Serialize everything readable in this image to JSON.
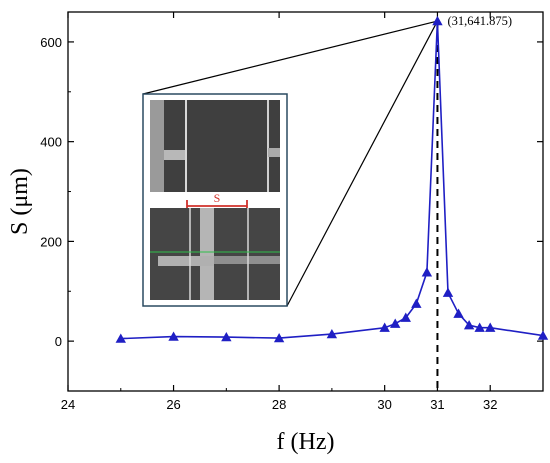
{
  "chart_data": {
    "type": "line",
    "xlabel": "f (Hz)",
    "ylabel": "S (μm)",
    "xlim": [
      24,
      33
    ],
    "ylim": [
      -100,
      660
    ],
    "x_ticks": [
      "24",
      "26",
      "28",
      "30",
      "31",
      "32"
    ],
    "y_ticks": [
      "0",
      "200",
      "400",
      "600"
    ],
    "grid": false,
    "series": [
      {
        "color": "#1f1fc4",
        "marker": "triangle",
        "points": [
          {
            "x": 25,
            "y": 5
          },
          {
            "x": 26,
            "y": 9
          },
          {
            "x": 27,
            "y": 8
          },
          {
            "x": 28,
            "y": 6
          },
          {
            "x": 29,
            "y": 14
          },
          {
            "x": 30,
            "y": 27
          },
          {
            "x": 30.2,
            "y": 35
          },
          {
            "x": 30.4,
            "y": 47
          },
          {
            "x": 30.6,
            "y": 75
          },
          {
            "x": 30.8,
            "y": 138
          },
          {
            "x": 31,
            "y": 641.875
          },
          {
            "x": 31.2,
            "y": 97
          },
          {
            "x": 31.4,
            "y": 55
          },
          {
            "x": 31.6,
            "y": 32
          },
          {
            "x": 31.8,
            "y": 27
          },
          {
            "x": 32,
            "y": 27
          },
          {
            "x": 33,
            "y": 11
          }
        ]
      }
    ],
    "annotations": [
      {
        "text": "(31,641.875)",
        "x": 31,
        "y": 641.875
      }
    ],
    "reference_line": {
      "x": 31,
      "style": "dashed",
      "color": "#000000"
    },
    "inset": {
      "type": "micrograph",
      "panels": 2,
      "label": "S",
      "label_color": "#d0302a",
      "callout_target": {
        "x": 31,
        "y": 641.875
      }
    }
  }
}
